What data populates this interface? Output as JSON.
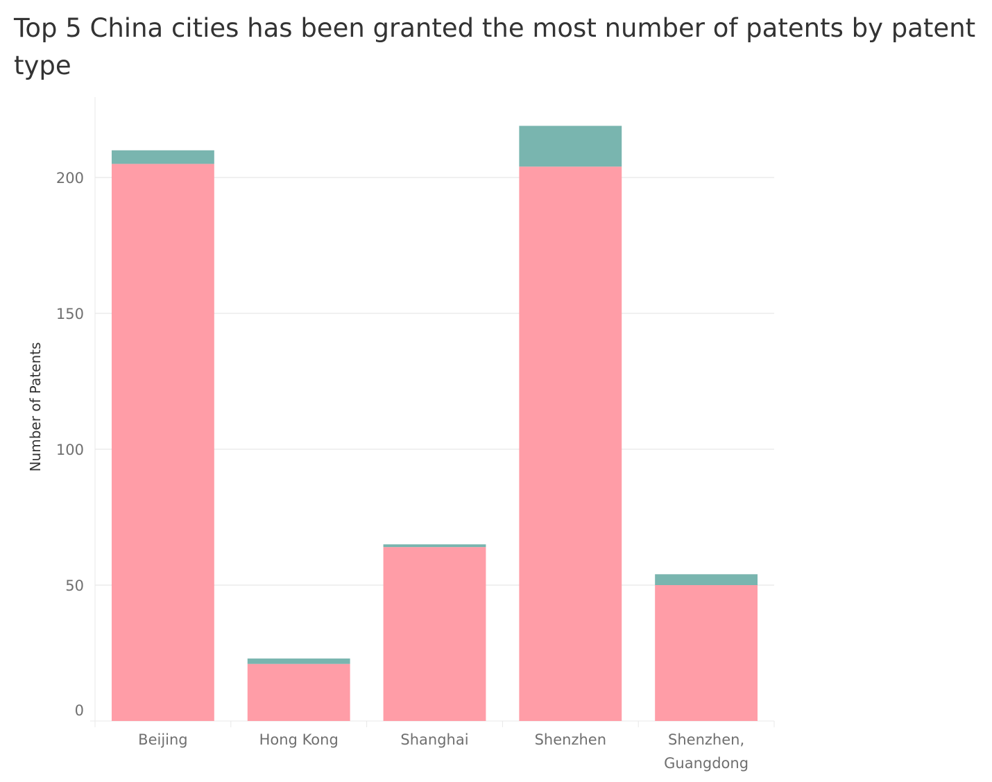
{
  "chart_data": {
    "type": "bar",
    "stacked": true,
    "title": "Top 5 China cities has been granted the most number of patents by patent type",
    "xlabel": "",
    "ylabel": "Number of Patents",
    "categories": [
      "Beijing",
      "Hong Kong",
      "Shanghai",
      "Shenzhen",
      "Shenzhen, Guangdong"
    ],
    "series": [
      {
        "values": [
          205,
          21,
          64,
          204,
          50
        ],
        "color": "#ff9da7"
      },
      {
        "values": [
          5,
          2,
          1,
          15,
          4
        ],
        "color": "#79b5af"
      }
    ],
    "ylim": [
      0,
      230
    ],
    "yticks": [
      0,
      50,
      100,
      150,
      200
    ],
    "grid": true,
    "legend": "none"
  }
}
